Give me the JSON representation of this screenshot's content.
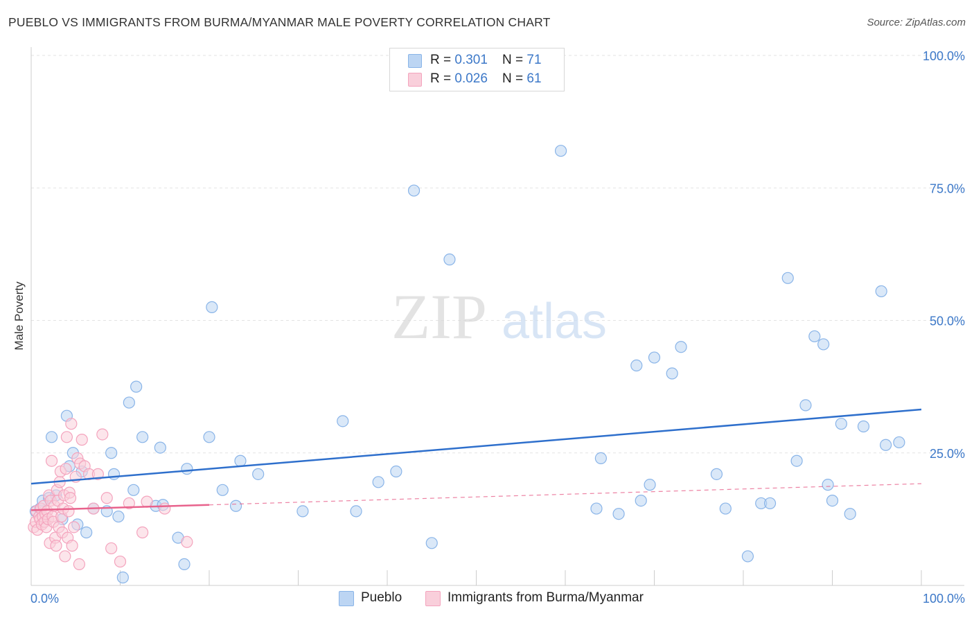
{
  "chart_data": {
    "type": "scatter",
    "title": "PUEBLO VS IMMIGRANTS FROM BURMA/MYANMAR MALE POVERTY CORRELATION CHART",
    "source": "Source: ZipAtlas.com",
    "xlabel": "",
    "ylabel": "Male Poverty",
    "xlim": [
      0,
      100
    ],
    "ylim": [
      0,
      100
    ],
    "x_tick_labels": [
      "0.0%",
      "100.0%"
    ],
    "y_tick_labels": [
      "100.0%",
      "75.0%",
      "50.0%",
      "25.0%"
    ],
    "y_ticks": [
      100,
      75,
      50,
      25
    ],
    "watermark": "ZIPatlas",
    "legend": {
      "rows": [
        {
          "r_label": "R = ",
          "r_value": "0.301",
          "n_label": "N = ",
          "n_value": "71"
        },
        {
          "r_label": "R = ",
          "r_value": "0.026",
          "n_label": "N = ",
          "n_value": "61"
        }
      ]
    },
    "series": [
      {
        "name": "Pueblo",
        "color": "#89b4e8",
        "fill": "#bcd5f3",
        "line_color": "#2e6fcc",
        "trend": {
          "x0": 0,
          "y0": 19.2,
          "x1": 100,
          "y1": 33.2,
          "dashed_from": null
        },
        "points": [
          [
            0.5,
            14
          ],
          [
            1.0,
            14.5
          ],
          [
            1.3,
            16
          ],
          [
            2.0,
            16.5
          ],
          [
            2.3,
            28
          ],
          [
            2.8,
            17
          ],
          [
            3.5,
            12.5
          ],
          [
            4.0,
            32
          ],
          [
            4.3,
            22.5
          ],
          [
            4.7,
            25
          ],
          [
            5.2,
            11.5
          ],
          [
            5.7,
            21.5
          ],
          [
            6.2,
            10
          ],
          [
            7.0,
            14.5
          ],
          [
            8.5,
            14
          ],
          [
            9.0,
            25
          ],
          [
            9.3,
            21
          ],
          [
            9.8,
            13
          ],
          [
            10.3,
            1.5
          ],
          [
            11.0,
            34.5
          ],
          [
            11.5,
            18
          ],
          [
            11.8,
            37.5
          ],
          [
            12.5,
            28
          ],
          [
            14.0,
            15
          ],
          [
            14.5,
            26
          ],
          [
            14.8,
            15.2
          ],
          [
            16.5,
            9
          ],
          [
            17.2,
            4
          ],
          [
            17.5,
            22
          ],
          [
            20.0,
            28
          ],
          [
            20.3,
            52.5
          ],
          [
            21.5,
            18
          ],
          [
            23.0,
            15
          ],
          [
            23.5,
            23.5
          ],
          [
            25.5,
            21
          ],
          [
            30.5,
            14
          ],
          [
            35.0,
            31
          ],
          [
            36.5,
            14
          ],
          [
            39.0,
            19.5
          ],
          [
            41.0,
            21.5
          ],
          [
            43.0,
            74.5
          ],
          [
            45.0,
            8
          ],
          [
            47.0,
            61.5
          ],
          [
            59.5,
            82
          ],
          [
            63.5,
            14.5
          ],
          [
            64.0,
            24
          ],
          [
            66.0,
            13.5
          ],
          [
            68.0,
            41.5
          ],
          [
            68.5,
            16
          ],
          [
            69.5,
            19
          ],
          [
            70.0,
            43
          ],
          [
            72.0,
            40
          ],
          [
            73.0,
            45
          ],
          [
            77.0,
            21
          ],
          [
            78.0,
            14.5
          ],
          [
            80.5,
            5.5
          ],
          [
            82.0,
            15.5
          ],
          [
            83.0,
            15.5
          ],
          [
            85.0,
            58
          ],
          [
            86.0,
            23.5
          ],
          [
            87.0,
            34
          ],
          [
            88.0,
            47
          ],
          [
            89.0,
            45.5
          ],
          [
            89.5,
            19
          ],
          [
            90.0,
            16
          ],
          [
            91.0,
            30.5
          ],
          [
            92.0,
            13.5
          ],
          [
            93.5,
            30
          ],
          [
            95.5,
            55.5
          ],
          [
            96.0,
            26.5
          ],
          [
            97.5,
            27
          ]
        ]
      },
      {
        "name": "Immigrants from Burma/Myanmar",
        "color": "#f4a3bd",
        "fill": "#f9cfdb",
        "line_color": "#e8628c",
        "trend": {
          "x0": 0,
          "y0": 14.2,
          "x1": 100,
          "y1": 19.2,
          "dashed_from": 20
        },
        "points": [
          [
            0.3,
            11
          ],
          [
            0.5,
            12
          ],
          [
            0.6,
            14
          ],
          [
            0.7,
            10.5
          ],
          [
            0.9,
            13
          ],
          [
            1.0,
            12.5
          ],
          [
            1.1,
            14.5
          ],
          [
            1.2,
            11.5
          ],
          [
            1.3,
            13
          ],
          [
            1.4,
            15
          ],
          [
            1.5,
            12
          ],
          [
            1.6,
            13.5
          ],
          [
            1.7,
            11
          ],
          [
            1.8,
            14
          ],
          [
            1.9,
            12.5
          ],
          [
            2.0,
            17
          ],
          [
            2.1,
            8
          ],
          [
            2.2,
            16
          ],
          [
            2.3,
            23.5
          ],
          [
            2.4,
            13
          ],
          [
            2.5,
            12
          ],
          [
            2.6,
            15
          ],
          [
            2.7,
            9
          ],
          [
            2.8,
            7.5
          ],
          [
            2.9,
            18
          ],
          [
            3.0,
            16
          ],
          [
            3.1,
            11
          ],
          [
            3.2,
            19.5
          ],
          [
            3.3,
            21.5
          ],
          [
            3.4,
            13
          ],
          [
            3.5,
            10
          ],
          [
            3.6,
            14.5
          ],
          [
            3.7,
            17
          ],
          [
            3.8,
            5.5
          ],
          [
            3.9,
            22
          ],
          [
            4.0,
            28
          ],
          [
            4.1,
            9
          ],
          [
            4.2,
            14
          ],
          [
            4.3,
            17.5
          ],
          [
            4.4,
            16.5
          ],
          [
            4.5,
            30.5
          ],
          [
            4.6,
            7.5
          ],
          [
            4.8,
            11
          ],
          [
            5.0,
            20.5
          ],
          [
            5.2,
            24
          ],
          [
            5.4,
            4
          ],
          [
            5.5,
            23
          ],
          [
            5.7,
            27.5
          ],
          [
            6.0,
            22.5
          ],
          [
            6.5,
            21
          ],
          [
            7.0,
            14.5
          ],
          [
            7.5,
            21
          ],
          [
            8.0,
            28.5
          ],
          [
            8.5,
            16.5
          ],
          [
            9.0,
            7
          ],
          [
            10.0,
            4.5
          ],
          [
            11.0,
            15.5
          ],
          [
            12.5,
            10
          ],
          [
            13.0,
            15.8
          ],
          [
            15.0,
            14.5
          ],
          [
            17.5,
            8.2
          ]
        ]
      }
    ]
  },
  "labels": {
    "legend_pueblo": "Pueblo",
    "legend_burma": "Immigrants from Burma/Myanmar"
  }
}
